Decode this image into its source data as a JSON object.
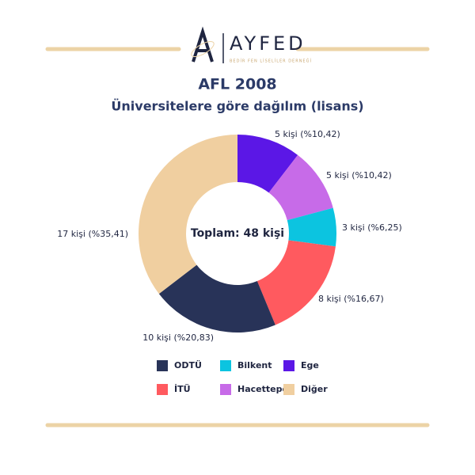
{
  "logo": {
    "name": "AYFED",
    "tagline": "BEDİR FEN LİSELİLER DERNEĞİ"
  },
  "chart_data": {
    "type": "donut",
    "title": "AFL 2008",
    "subtitle": "Üniversitelere göre dağılım (lisans)",
    "center_label": "Toplam: 48 kişi",
    "categories": [
      "Ege",
      "Hacettepe",
      "Bilkent",
      "İTÜ",
      "ODTÜ",
      "Diğer"
    ],
    "values": [
      5,
      5,
      3,
      8,
      10,
      17
    ],
    "value_labels": [
      "5 kişi (%10,42)",
      "5 kişi (%10,42)",
      "3 kişi (%6,25)",
      "8 kişi (%16,67)",
      "10 kişi (%20,83)",
      "17 kişi (%35,41)"
    ],
    "colors": [
      "#5b17e6",
      "#c76be8",
      "#0cc4e0",
      "#ff5a5f",
      "#283358",
      "#f0cfa0"
    ]
  }
}
